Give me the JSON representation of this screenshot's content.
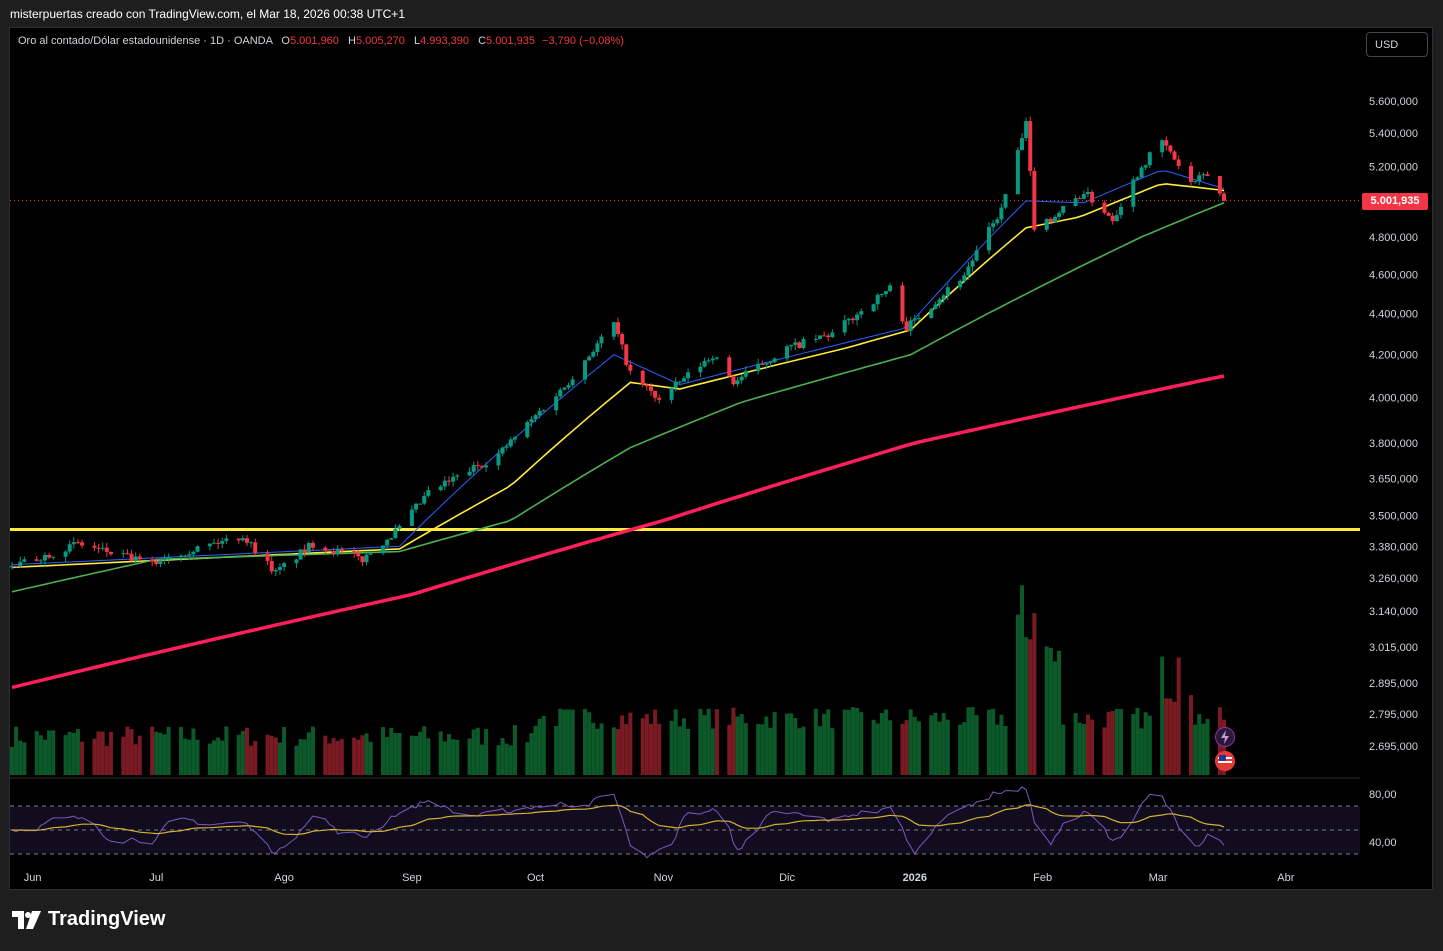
{
  "caption": "misterpuertas creado con TradingView.com, el Mar 18, 2026 00:38 UTC+1",
  "legend": {
    "symbol": "Oro al contado/Dólar estadounidense · 1D · OANDA",
    "open_label": "O",
    "open": "5.001,960",
    "high_label": "H",
    "high": "5.005,270",
    "low_label": "L",
    "low": "4.993,390",
    "close_label": "C",
    "close": "5.001,935",
    "change": "−3,790 (−0,08%)"
  },
  "currency": "USD",
  "last_price_label": "5.001,935",
  "brand": "TradingView",
  "colors": {
    "up": "#089981",
    "down": "#f23645",
    "ma_fast": "#2962ff",
    "ma_mid": "#ffeb3b",
    "ma_slow": "#4caf50",
    "ma_200": "#ff1f5a",
    "support": "#ffeb3b",
    "rsi": "#7e57c2",
    "rsi_ma": "#d4b232"
  },
  "chart_data": {
    "type": "candlestick",
    "symbol": "XAUUSD",
    "price_axis": {
      "scale": "log",
      "range": [
        2600,
        5800
      ],
      "ticks": [
        "5.600,000",
        "5.400,000",
        "5.200,000",
        "4.800,000",
        "4.600,000",
        "4.400,000",
        "4.200,000",
        "4.000,000",
        "3.800,000",
        "3.650,000",
        "3.500,000",
        "3.380,000",
        "3.260,000",
        "3.140,000",
        "3.015,000",
        "2.895,000",
        "2.795,000",
        "2.695,000"
      ],
      "tick_values": [
        5600,
        5400,
        5200,
        4800,
        4600,
        4400,
        4200,
        4000,
        3800,
        3650,
        3500,
        3380,
        3260,
        3140,
        3015,
        2895,
        2795,
        2695
      ]
    },
    "time_axis": {
      "labels": [
        "Jun",
        "Jul",
        "Ago",
        "Sep",
        "Oct",
        "Nov",
        "Dic",
        "2026",
        "Feb",
        "Mar",
        "Abr"
      ]
    },
    "last_price": 5001.935,
    "support_level": 3445,
    "price_keypoints": [
      {
        "t": "2025-05-27",
        "v": 3300
      },
      {
        "t": "2025-06-12",
        "v": 3390
      },
      {
        "t": "2025-06-30",
        "v": 3310
      },
      {
        "t": "2025-07-03",
        "v": 3340
      },
      {
        "t": "2025-07-22",
        "v": 3420
      },
      {
        "t": "2025-07-30",
        "v": 3280
      },
      {
        "t": "2025-08-08",
        "v": 3390
      },
      {
        "t": "2025-08-20",
        "v": 3330
      },
      {
        "t": "2025-08-29",
        "v": 3450
      },
      {
        "t": "2025-09-05",
        "v": 3590
      },
      {
        "t": "2025-09-22",
        "v": 3750
      },
      {
        "t": "2025-10-08",
        "v": 4050
      },
      {
        "t": "2025-10-20",
        "v": 4350
      },
      {
        "t": "2025-10-24",
        "v": 4110
      },
      {
        "t": "2025-10-31",
        "v": 3990
      },
      {
        "t": "2025-11-13",
        "v": 4200
      },
      {
        "t": "2025-11-18",
        "v": 4070
      },
      {
        "t": "2025-12-01",
        "v": 4230
      },
      {
        "t": "2025-12-12",
        "v": 4300
      },
      {
        "t": "2025-12-26",
        "v": 4530
      },
      {
        "t": "2025-12-30",
        "v": 4330
      },
      {
        "t": "2026-01-13",
        "v": 4600
      },
      {
        "t": "2026-01-22",
        "v": 4950
      },
      {
        "t": "2026-01-28",
        "v": 5450
      },
      {
        "t": "2026-01-30",
        "v": 4860
      },
      {
        "t": "2026-02-03",
        "v": 4900
      },
      {
        "t": "2026-02-11",
        "v": 5050
      },
      {
        "t": "2026-02-18",
        "v": 4900
      },
      {
        "t": "2026-02-25",
        "v": 5200
      },
      {
        "t": "2026-03-02",
        "v": 5350
      },
      {
        "t": "2026-03-09",
        "v": 5100
      },
      {
        "t": "2026-03-13",
        "v": 5150
      },
      {
        "t": "2026-03-17",
        "v": 5002
      }
    ],
    "moving_averages": [
      {
        "color": "#2962ff",
        "points": [
          {
            "t": "2025-05-27",
            "v": 3310
          },
          {
            "t": "2025-08-29",
            "v": 3380
          },
          {
            "t": "2025-10-20",
            "v": 4200
          },
          {
            "t": "2025-11-05",
            "v": 4060
          },
          {
            "t": "2025-12-30",
            "v": 4330
          },
          {
            "t": "2026-01-28",
            "v": 5000
          },
          {
            "t": "2026-02-11",
            "v": 4990
          },
          {
            "t": "2026-03-02",
            "v": 5180
          },
          {
            "t": "2026-03-17",
            "v": 5070
          }
        ]
      },
      {
        "color": "#ffeb3b",
        "points": [
          {
            "t": "2025-05-27",
            "v": 3300
          },
          {
            "t": "2025-08-29",
            "v": 3370
          },
          {
            "t": "2025-09-25",
            "v": 3620
          },
          {
            "t": "2025-10-24",
            "v": 4070
          },
          {
            "t": "2025-11-05",
            "v": 4040
          },
          {
            "t": "2025-12-15",
            "v": 4230
          },
          {
            "t": "2025-12-31",
            "v": 4320
          },
          {
            "t": "2026-01-28",
            "v": 4850
          },
          {
            "t": "2026-02-10",
            "v": 4910
          },
          {
            "t": "2026-03-02",
            "v": 5100
          },
          {
            "t": "2026-03-17",
            "v": 5060
          }
        ]
      },
      {
        "color": "#4caf50",
        "points": [
          {
            "t": "2025-05-27",
            "v": 3210
          },
          {
            "t": "2025-07-01",
            "v": 3330
          },
          {
            "t": "2025-08-29",
            "v": 3360
          },
          {
            "t": "2025-09-25",
            "v": 3480
          },
          {
            "t": "2025-10-24",
            "v": 3780
          },
          {
            "t": "2025-11-20",
            "v": 3980
          },
          {
            "t": "2025-12-31",
            "v": 4200
          },
          {
            "t": "2026-01-28",
            "v": 4500
          },
          {
            "t": "2026-02-25",
            "v": 4800
          },
          {
            "t": "2026-03-17",
            "v": 4990
          }
        ]
      },
      {
        "color": "#ff1f5a",
        "points": [
          {
            "t": "2025-05-27",
            "v": 2880
          },
          {
            "t": "2025-09-01",
            "v": 3200
          },
          {
            "t": "2025-11-01",
            "v": 3480
          },
          {
            "t": "2026-01-01",
            "v": 3800
          },
          {
            "t": "2026-03-17",
            "v": 4100
          }
        ]
      }
    ],
    "rsi": {
      "ticks": [
        "80,00",
        "40,00"
      ],
      "tick_values": [
        80,
        40
      ],
      "band": [
        70,
        30
      ],
      "midline": 50
    }
  }
}
